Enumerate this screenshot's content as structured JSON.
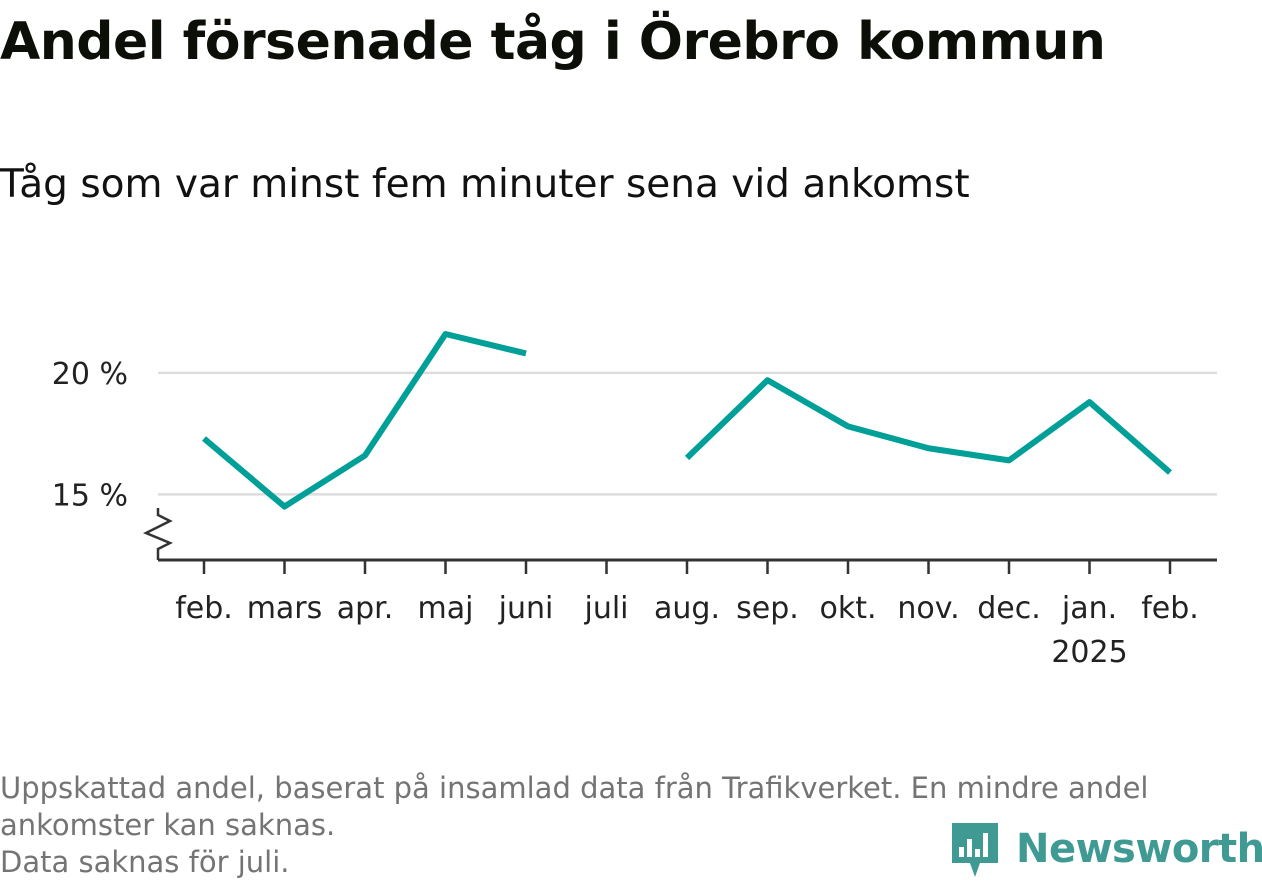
{
  "chart_data": {
    "type": "line",
    "title": "Andel försenade tåg i Örebro kommun",
    "subtitle": "Tåg som var minst fem minuter sena vid ankomst",
    "categories": [
      "feb.",
      "mars",
      "apr.",
      "maj",
      "juni",
      "juli",
      "aug.",
      "sep.",
      "okt.",
      "nov.",
      "dec.",
      "jan.",
      "feb."
    ],
    "year_label": {
      "category_index": 11,
      "text": "2025"
    },
    "series": [
      {
        "color": "#00a098",
        "values": [
          17.3,
          14.5,
          16.6,
          21.6,
          20.8,
          null,
          16.5,
          19.7,
          17.8,
          16.9,
          16.4,
          18.8,
          15.9
        ]
      }
    ],
    "y_ticks": [
      15,
      20
    ],
    "y_tick_labels": [
      "15 %",
      "20 %"
    ],
    "ylim": [
      12.3,
      23.0
    ],
    "axis_break": true,
    "grid": true,
    "colors": {
      "line": "#00a098",
      "grid": "#dddddd",
      "axis": "#333333"
    }
  },
  "footnote": {
    "line1": "Uppskattad andel, baserat på insamlad data från Trafikverket. En mindre andel",
    "line2": "ankomster kan saknas.",
    "line3": "Data saknas för juli."
  },
  "logo": {
    "text": "Newsworthy",
    "icon": "newsworthy-bar-chart-icon"
  }
}
